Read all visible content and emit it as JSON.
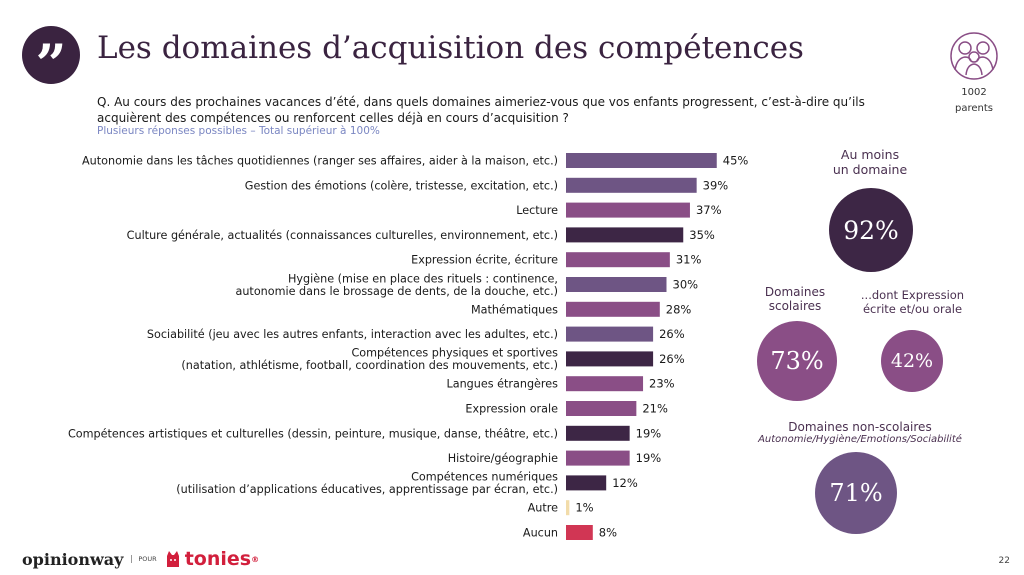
{
  "header": {
    "title": "Les domaines d’acquisition des compétences",
    "quote_icon": "quote-icon",
    "sample_icon": "family-icon",
    "sample_size": "1002",
    "sample_unit": "parents"
  },
  "question": "Q. Au cours des prochaines vacances d’été, dans quels domaines aimeriez-vous que vos enfants progressent, c’est-à-dire qu’ils acquièrent des compétences ou renforcent celles déjà en cours d’acquisition ?",
  "subtitle": "Plusieurs réponses possibles – Total supérieur à 100%",
  "chart_data": {
    "type": "bar",
    "orientation": "horizontal",
    "value_suffix": "%",
    "categories": [
      [
        "Autonomie dans les tâches quotidiennes (ranger ses affaires, aider à la maison, etc.)"
      ],
      [
        "Gestion des émotions (colère, tristesse, excitation, etc.)"
      ],
      [
        "Lecture"
      ],
      [
        "Culture générale, actualités (connaissances culturelles, environnement, etc.)"
      ],
      [
        "Expression écrite, écriture"
      ],
      [
        "Hygiène (mise en place des rituels : continence,",
        "autonomie dans le brossage de dents, de la douche, etc.)"
      ],
      [
        "Mathématiques"
      ],
      [
        "Sociabilité (jeu avec les autres enfants, interaction avec les adultes, etc.)"
      ],
      [
        "Compétences physiques et sportives",
        "(natation, athlétisme, football, coordination des mouvements, etc.)"
      ],
      [
        "Langues étrangères"
      ],
      [
        "Expression orale"
      ],
      [
        "Compétences artistiques et culturelles (dessin, peinture, musique, danse, théâtre, etc.)"
      ],
      [
        "Histoire/géographie"
      ],
      [
        "Compétences numériques",
        "(utilisation d’applications éducatives, apprentissage par écran, etc.)"
      ],
      [
        "Autre"
      ],
      [
        "Aucun"
      ]
    ],
    "values": [
      45,
      39,
      37,
      35,
      31,
      30,
      28,
      26,
      26,
      23,
      21,
      19,
      19,
      12,
      1,
      8
    ],
    "bar_colors": [
      "#6e5584",
      "#6e5584",
      "#8a4e86",
      "#3d2645",
      "#8a4e86",
      "#6e5584",
      "#8a4e86",
      "#6e5584",
      "#3d2645",
      "#8a4e86",
      "#8a4e86",
      "#3d2645",
      "#8a4e86",
      "#3d2645",
      "#f2dcaa",
      "#d13654"
    ]
  },
  "summary": {
    "total": {
      "caption": [
        "Au moins",
        "un domaine"
      ],
      "value": "92%",
      "color": "#3d2645"
    },
    "scolaires": {
      "caption": [
        "Domaines",
        "scolaires"
      ],
      "value": "73%",
      "color": "#8a4e86"
    },
    "expression": {
      "caption": [
        "...dont Expression",
        "écrite et/ou orale"
      ],
      "value": "42%",
      "color": "#8a4e86"
    },
    "non_scolaires": {
      "caption": "Domaines non-scolaires",
      "subcaption": "Autonomie/Hygiène/Emotions/Sociabilité",
      "value": "71%",
      "color": "#6e5584"
    }
  },
  "footer": {
    "brand1": "opinionway",
    "pour": "POUR",
    "brand2": "tonies",
    "brand2_mark": "®",
    "page": "22"
  }
}
